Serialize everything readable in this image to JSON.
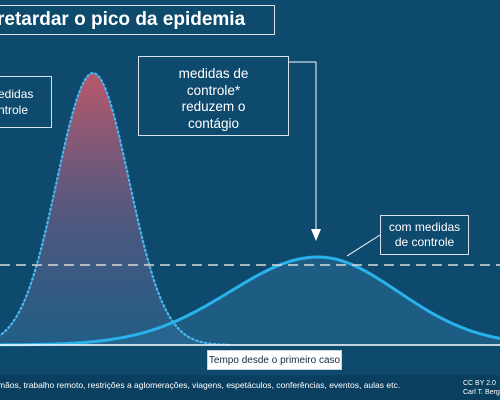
{
  "title": "retardar o pico da epidemia",
  "labels": {
    "left_box": [
      "edidas",
      "ntrole"
    ],
    "mid_box": [
      "medidas de",
      "controle*",
      "reduzem o",
      "contágio"
    ],
    "right_box": [
      "com medidas",
      "de controle"
    ],
    "x_axis": "Tempo desde o primeiro caso"
  },
  "footnote": "mãos, trabalho remoto, restrições a aglomerações, viagens, espetáculos, conferências, eventos, aulas etc.",
  "license": [
    "CC BY 2.0",
    "Carl T. Bergst"
  ],
  "colors": {
    "background": "#0e4a6e",
    "peak_fill_top": "#c4586a",
    "peak_fill_bottom": "#2f6a95",
    "curve_stroke": "#29b2ec",
    "threshold": "#d9d9d9"
  },
  "chart_data": {
    "type": "area",
    "x_label": "Tempo desde o primeiro caso",
    "series": [
      {
        "name": "",
        "style": "dotted",
        "peak_x": 0.3,
        "peak_height": 1.0
      },
      {
        "name": "com medidas de controle",
        "style": "solid",
        "peak_x": 0.65,
        "peak_height": 0.3
      }
    ],
    "threshold_line": {
      "style": "dashed",
      "level": 0.28
    }
  }
}
